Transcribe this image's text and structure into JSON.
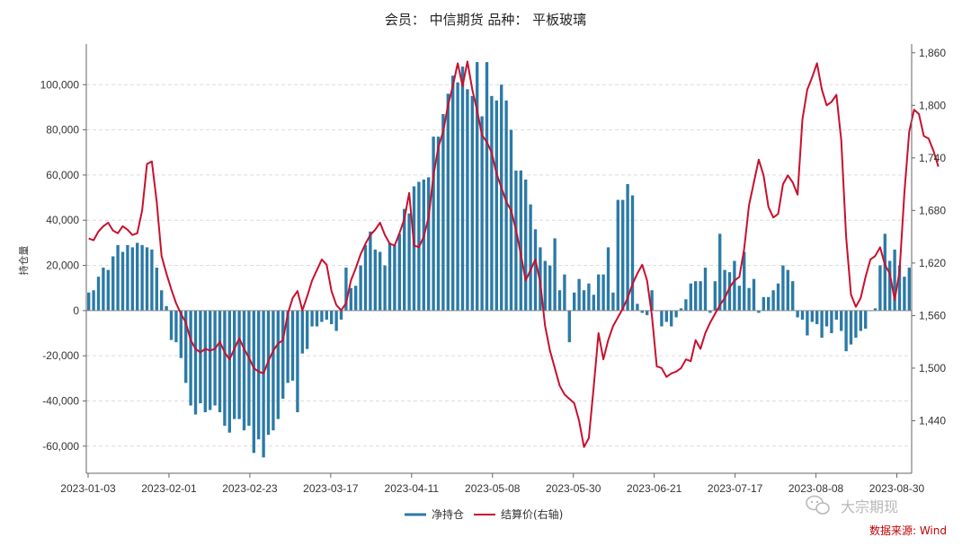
{
  "chart_data": {
    "type": "bar+line",
    "title": "会员： 中信期货 品种： 平板玻璃",
    "ylabel": "持仓量",
    "ylabel_right": "",
    "x_tick_labels": [
      "2023-01-03",
      "2023-02-01",
      "2023-02-23",
      "2023-03-17",
      "2023-04-11",
      "2023-05-08",
      "2023-05-30",
      "2023-06-21",
      "2023-07-17",
      "2023-08-08",
      "2023-08-30"
    ],
    "ylim_left": [
      -72000,
      118000
    ],
    "yticks_left": [
      -60000,
      -40000,
      -20000,
      0,
      20000,
      40000,
      60000,
      80000,
      100000
    ],
    "ytick_labels_left": [
      "-60,000",
      "-40,000",
      "-20,000",
      "0",
      "20,000",
      "40,000",
      "60,000",
      "80,000",
      "100,000"
    ],
    "ylim_right": [
      1380,
      1870
    ],
    "yticks_right": [
      1440,
      1500,
      1560,
      1620,
      1680,
      1740,
      1800,
      1860
    ],
    "ytick_labels_right": [
      "1,440",
      "1,500",
      "1,560",
      "1,620",
      "1,680",
      "1,740",
      "1,800",
      "1,860"
    ],
    "grid": true,
    "legend_position": "bottom-center",
    "series": [
      {
        "name": "净持仓",
        "kind": "bar",
        "color": "#2b7aa7",
        "values": [
          8000,
          9000,
          15000,
          19000,
          18000,
          24000,
          29000,
          26000,
          29000,
          28000,
          30000,
          29000,
          28000,
          27000,
          19000,
          9000,
          2000,
          -13000,
          -14000,
          -21000,
          -32000,
          -42000,
          -46000,
          -41000,
          -45000,
          -44000,
          -42000,
          -45000,
          -51000,
          -54000,
          -48000,
          -48000,
          -53000,
          -51000,
          -63000,
          -57000,
          -65000,
          -55000,
          -53000,
          -48000,
          -39000,
          -32000,
          -31000,
          -45000,
          -19000,
          -17000,
          -7000,
          -7000,
          -5000,
          -4000,
          -6000,
          -9000,
          -4000,
          19000,
          10000,
          11000,
          20000,
          29000,
          35000,
          27000,
          26000,
          20000,
          30000,
          29000,
          34000,
          45000,
          43000,
          55000,
          57000,
          58000,
          59000,
          77000,
          77000,
          87000,
          96000,
          104000,
          101000,
          108000,
          98000,
          95000,
          110000,
          86000,
          110000,
          95000,
          93000,
          100000,
          93000,
          80000,
          62000,
          62000,
          58000,
          47000,
          36000,
          28000,
          22000,
          20000,
          32000,
          9000,
          16000,
          -14000,
          8000,
          14000,
          9000,
          12000,
          7000,
          16000,
          16000,
          28000,
          8000,
          49000,
          49000,
          56000,
          51000,
          3000,
          -1000,
          -2000,
          9000,
          0,
          -7000,
          -5000,
          -7000,
          -3000,
          1000,
          5000,
          12000,
          13000,
          13000,
          19000,
          -1000,
          13000,
          34000,
          18000,
          17000,
          22000,
          11000,
          26000,
          10000,
          14000,
          -1000,
          6000,
          6000,
          9000,
          12000,
          20000,
          18000,
          13000,
          -3000,
          -4000,
          -11000,
          -5000,
          -6000,
          -12000,
          -7000,
          -10000,
          -4000,
          -9000,
          -18000,
          -15000,
          -12000,
          -9000,
          -8000,
          0,
          1000,
          20000,
          34000,
          22000,
          27000,
          20000,
          15000,
          19000
        ]
      },
      {
        "name": "结算价(右轴)",
        "kind": "line",
        "color": "#c8102e",
        "values": [
          1648,
          1646,
          1656,
          1662,
          1666,
          1657,
          1654,
          1662,
          1658,
          1652,
          1654,
          1680,
          1733,
          1736,
          1690,
          1628,
          1608,
          1590,
          1574,
          1562,
          1552,
          1532,
          1522,
          1518,
          1522,
          1520,
          1522,
          1530,
          1518,
          1510,
          1522,
          1534,
          1522,
          1512,
          1500,
          1496,
          1494,
          1508,
          1520,
          1528,
          1532,
          1562,
          1580,
          1588,
          1566,
          1582,
          1600,
          1612,
          1624,
          1618,
          1588,
          1572,
          1566,
          1574,
          1600,
          1614,
          1630,
          1642,
          1652,
          1658,
          1666,
          1652,
          1642,
          1640,
          1654,
          1670,
          1700,
          1640,
          1638,
          1650,
          1672,
          1720,
          1752,
          1770,
          1800,
          1822,
          1848,
          1822,
          1850,
          1818,
          1794,
          1766,
          1758,
          1746,
          1722,
          1706,
          1690,
          1680,
          1658,
          1630,
          1600,
          1612,
          1624,
          1598,
          1548,
          1520,
          1500,
          1480,
          1470,
          1465,
          1460,
          1440,
          1410,
          1420,
          1478,
          1540,
          1510,
          1532,
          1548,
          1558,
          1568,
          1580,
          1596,
          1608,
          1618,
          1600,
          1560,
          1502,
          1500,
          1490,
          1494,
          1496,
          1500,
          1510,
          1508,
          1532,
          1522,
          1540,
          1552,
          1562,
          1572,
          1580,
          1592,
          1600,
          1604,
          1636,
          1686,
          1712,
          1738,
          1720,
          1684,
          1672,
          1676,
          1710,
          1720,
          1712,
          1698,
          1784,
          1818,
          1832,
          1848,
          1818,
          1800,
          1804,
          1812,
          1760,
          1650,
          1584,
          1570,
          1580,
          1604,
          1624,
          1628,
          1638,
          1618,
          1608,
          1578,
          1610,
          1700,
          1770,
          1795,
          1790,
          1765,
          1762,
          1748,
          1730
        ]
      }
    ]
  },
  "legend": {
    "bar_label": "净持仓",
    "line_label": "结算价(右轴)"
  },
  "footer": {
    "source": "数据来源: Wind",
    "watermark": "大宗期现"
  }
}
